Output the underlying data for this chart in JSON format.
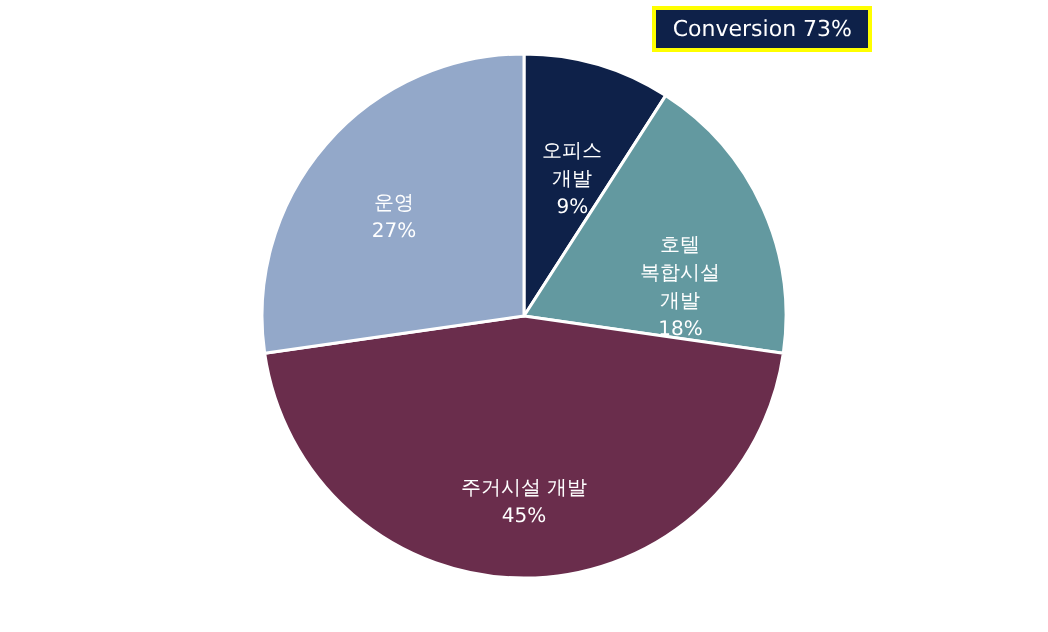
{
  "chart_data": {
    "type": "pie",
    "categories": [
      "오피스 개발",
      "호텔 복합시설 개발",
      "주거시설 개발",
      "운영"
    ],
    "values": [
      9,
      18,
      45,
      27
    ],
    "value_labels": [
      "9%",
      "18%",
      "45%",
      "27%"
    ],
    "colors": [
      "#0e2149",
      "#6399a0",
      "#6a2d4c",
      "#93a8c9"
    ],
    "annotations": [
      "Conversion 73%"
    ]
  }
}
